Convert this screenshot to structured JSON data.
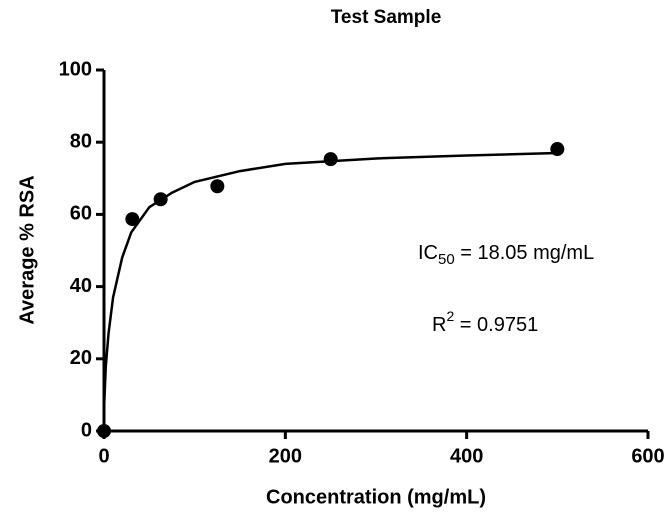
{
  "chart_data": {
    "type": "scatter",
    "title": "Test Sample",
    "xlabel": "Concentration (mg/mL)",
    "ylabel": "Average % RSA",
    "x": [
      0,
      31.25,
      62.5,
      125,
      250,
      500
    ],
    "values": [
      0,
      58.7,
      64.2,
      67.8,
      75.3,
      78.1
    ],
    "color": "#000000",
    "fit": {
      "x": [
        0,
        2,
        5,
        10,
        20,
        30,
        50,
        75,
        100,
        150,
        200,
        300,
        400,
        500
      ],
      "values": [
        6,
        18,
        27,
        37,
        48,
        55,
        62,
        66,
        69,
        72,
        74,
        75.5,
        76.3,
        77
      ]
    },
    "xlim": [
      0,
      600
    ],
    "xticks": [
      0,
      200,
      400,
      600
    ],
    "ylim": [
      0,
      100
    ],
    "yticks": [
      0,
      20,
      40,
      60,
      80,
      100
    ],
    "annotations": [
      {
        "parts": [
          "IC",
          "50",
          " = 18.05 mg/mL"
        ]
      },
      {
        "parts": [
          "R",
          "2",
          " = 0.9751"
        ]
      }
    ]
  }
}
